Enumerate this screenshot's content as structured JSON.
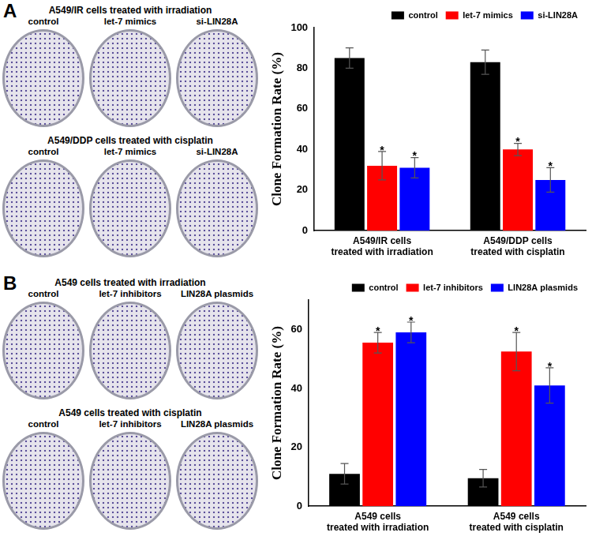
{
  "figure": {
    "panels": [
      {
        "letter": "A",
        "groups": [
          {
            "title": "A549/IR cells treated with irradiation",
            "labels": [
              "control",
              "let-7 mimics",
              "si-LIN28A"
            ]
          },
          {
            "title": "A549/DDP cells treated with cisplatin",
            "labels": [
              "control",
              "let-7 mimics",
              "si-LIN28A"
            ]
          }
        ]
      },
      {
        "letter": "B",
        "groups": [
          {
            "title": "A549 cells treated with irradiation",
            "labels": [
              "control",
              "let-7 inhibitors",
              "LIN28A plasmids"
            ]
          },
          {
            "title": "A549 cells treated with cisplatin",
            "labels": [
              "control",
              "let-7 inhibitors",
              "LIN28A plasmids"
            ]
          }
        ]
      }
    ]
  },
  "chart_data": [
    {
      "type": "bar",
      "y_label": "Clone Formation Rate (%)",
      "categories": [
        "A549/IR cells treated with irradiation",
        "A549/DDP cells treated with cisplatin"
      ],
      "series": [
        {
          "name": "control",
          "color": "#000000",
          "values": [
            85,
            83
          ],
          "errors": [
            5,
            6
          ]
        },
        {
          "name": "let-7 mimics",
          "color": "#ff0000",
          "values": [
            32,
            40
          ],
          "errors": [
            7,
            3
          ],
          "annotations": [
            "*",
            "*"
          ]
        },
        {
          "name": "si-LIN28A",
          "color": "#0000ff",
          "values": [
            31,
            25
          ],
          "errors": [
            5,
            6
          ],
          "annotations": [
            "*",
            "*"
          ]
        }
      ],
      "ylim": [
        0,
        100
      ],
      "yticks": [
        0,
        20,
        40,
        60,
        80,
        100
      ],
      "grid": false,
      "legend": "upper right"
    },
    {
      "type": "bar",
      "y_label": "Clone Formation Rate (%)",
      "categories": [
        "A549 cells treated with irradiation",
        "A549 cells treated with cisplatin"
      ],
      "series": [
        {
          "name": "control",
          "color": "#000000",
          "values": [
            11,
            9.5
          ],
          "errors": [
            3.5,
            3
          ]
        },
        {
          "name": "let-7 inhibitors",
          "color": "#ff0000",
          "values": [
            55.5,
            52.5
          ],
          "errors": [
            3.5,
            6.5
          ],
          "annotations": [
            "*",
            "*"
          ]
        },
        {
          "name": "LIN28A plasmids",
          "color": "#0000ff",
          "values": [
            59,
            41
          ],
          "errors": [
            3.5,
            6
          ],
          "annotations": [
            "*",
            "*"
          ]
        }
      ],
      "ylim": [
        0,
        70
      ],
      "yticks": [
        0,
        20,
        40,
        60
      ],
      "grid": false,
      "legend": "upper right"
    }
  ]
}
